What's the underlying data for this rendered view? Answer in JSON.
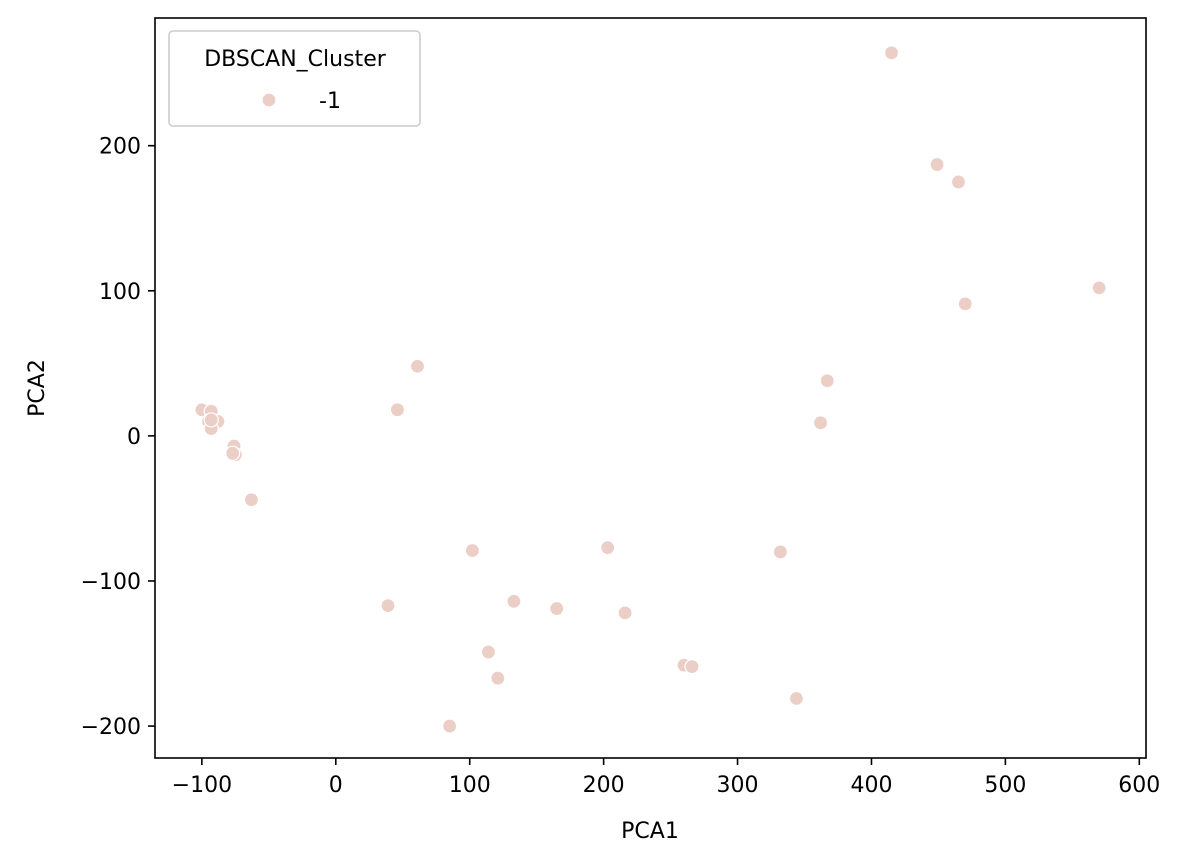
{
  "chart_data": {
    "type": "scatter",
    "xlabel": "PCA1",
    "ylabel": "PCA2",
    "xlim": [
      -135,
      605
    ],
    "ylim": [
      -222,
      288
    ],
    "xticks": [
      -100,
      0,
      100,
      200,
      300,
      400,
      500,
      600
    ],
    "yticks": [
      -200,
      -100,
      0,
      100,
      200
    ],
    "xtick_labels": [
      "−100",
      "0",
      "100",
      "200",
      "300",
      "400",
      "500",
      "600"
    ],
    "ytick_labels": [
      "−200",
      "−100",
      "0",
      "100",
      "200"
    ],
    "grid": false,
    "legend": {
      "title": "DBSCAN_Cluster",
      "placement": "upper-left",
      "entries": [
        {
          "label": "-1",
          "color": "#ebcfc7"
        }
      ]
    },
    "series": [
      {
        "name": "-1",
        "color": "#ebcfc7",
        "x": [
          -100,
          -93,
          -95,
          -91,
          -88,
          -93,
          -93,
          -76,
          -75,
          -77,
          -63,
          46,
          61,
          39,
          85,
          102,
          114,
          121,
          133,
          165,
          203,
          216,
          260,
          266,
          332,
          344,
          362,
          367,
          415,
          449,
          465,
          470,
          570
        ],
        "y": [
          18,
          17,
          10,
          10,
          10,
          5,
          11,
          -7,
          -13,
          -12,
          -44,
          18,
          48,
          -117,
          -200,
          -79,
          -149,
          -167,
          -114,
          -119,
          -77,
          -122,
          -158,
          -159,
          -80,
          -181,
          9,
          38,
          264,
          187,
          175,
          91,
          102
        ]
      }
    ]
  }
}
